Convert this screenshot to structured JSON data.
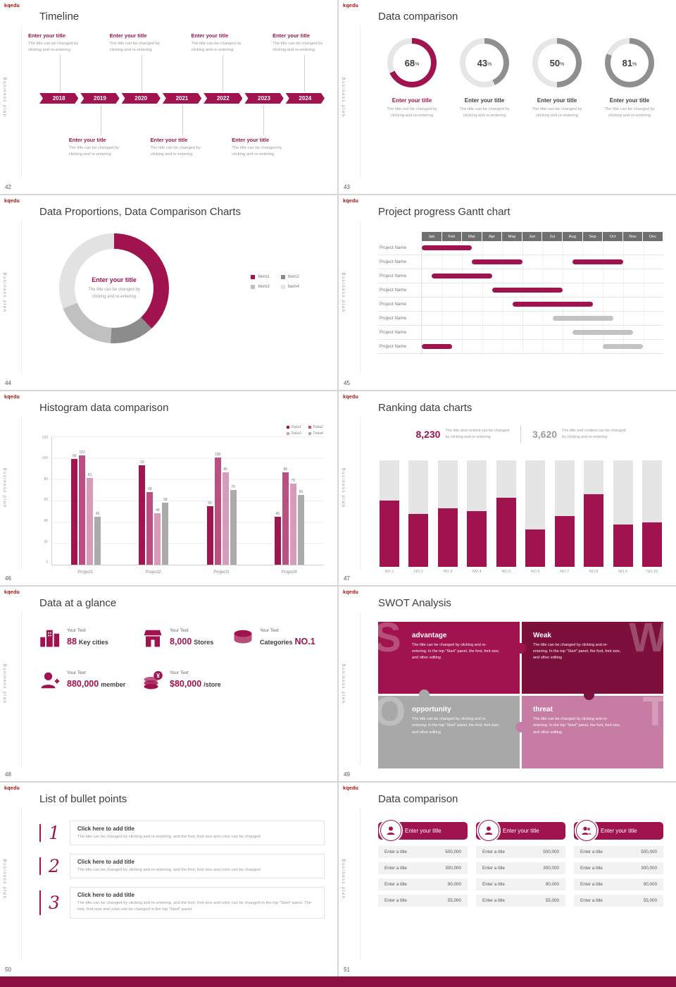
{
  "global": {
    "logo": "kqedu",
    "side_label": "Business plan",
    "accent_color": "#a0134e",
    "footer_color": "#8c1143"
  },
  "slide42": {
    "page": "42",
    "title": "Timeline",
    "years": [
      "2018",
      "2019",
      "2020",
      "2021",
      "2022",
      "2023",
      "2024"
    ],
    "entry": {
      "title": "Enter your title",
      "line1": "The title can be changed by",
      "line2": "clicking and re-entering"
    }
  },
  "slide43": {
    "page": "43",
    "title": "Data comparison",
    "label": "Enter your title",
    "desc_line1": "The title can be changed by",
    "desc_line2": "clicking and re-entering",
    "chart": {
      "type": "donut-progress",
      "unit": "%",
      "values": [
        68,
        43,
        50,
        81
      ],
      "ring_colors": [
        "#a0134e",
        "#8f8f8f",
        "#8f8f8f",
        "#8f8f8f"
      ],
      "track_color": "#e6e6e6"
    }
  },
  "slide44": {
    "page": "44",
    "title": "Data Proportions, Data Comparison Charts",
    "center_title": "Enter your title",
    "center_line1": "The title can be changed by",
    "center_line2": "clicking and re-entering",
    "chart": {
      "type": "pie",
      "legend": [
        "Item1",
        "Item2",
        "Item3",
        "Item4"
      ],
      "values": [
        38,
        13,
        18,
        31
      ],
      "colors": [
        "#a0134e",
        "#8c8c8c",
        "#c0c0c0",
        "#e2e2e2"
      ]
    }
  },
  "slide45": {
    "page": "45",
    "title": "Project progress Gantt chart",
    "row_label": "Project Name",
    "months": [
      "Jan",
      "Feb",
      "Mar",
      "Apr",
      "May",
      "Jun",
      "Jul",
      "Aug",
      "Sep",
      "Oct",
      "Nov",
      "Dec"
    ],
    "chart": {
      "type": "gantt",
      "bar_gray": "#c3c3c3",
      "rows": [
        {
          "bars": [
            {
              "start": 0,
              "end": 2.5,
              "color": "accent"
            }
          ]
        },
        {
          "bars": [
            {
              "start": 2.5,
              "end": 5,
              "color": "accent"
            },
            {
              "start": 7.5,
              "end": 10,
              "color": "accent"
            }
          ]
        },
        {
          "bars": [
            {
              "start": 0.5,
              "end": 3.5,
              "color": "accent"
            }
          ]
        },
        {
          "bars": [
            {
              "start": 3.5,
              "end": 7,
              "color": "accent"
            }
          ]
        },
        {
          "bars": [
            {
              "start": 4.5,
              "end": 8.5,
              "color": "accent"
            }
          ]
        },
        {
          "bars": [
            {
              "start": 6.5,
              "end": 9.5,
              "color": "gray"
            }
          ]
        },
        {
          "bars": [
            {
              "start": 7.5,
              "end": 10.5,
              "color": "gray"
            }
          ]
        },
        {
          "bars": [
            {
              "start": 0,
              "end": 1.5,
              "color": "accent"
            },
            {
              "start": 9,
              "end": 11,
              "color": "gray"
            }
          ]
        }
      ]
    }
  },
  "slide46": {
    "page": "46",
    "title": "Histogram data comparison",
    "chart": {
      "type": "bar",
      "categories": [
        "Project1",
        "Project2",
        "Project3",
        "Project4"
      ],
      "series": [
        {
          "name": "Data1",
          "values": [
            99,
            93,
            55,
            45
          ]
        },
        {
          "name": "Data2",
          "values": [
            102,
            68,
            100,
            86
          ]
        },
        {
          "name": "Data3",
          "values": [
            81,
            48,
            86,
            76
          ]
        },
        {
          "name": "Data4",
          "values": [
            45,
            58,
            70,
            65
          ]
        }
      ],
      "colors": [
        "#9e1550",
        "#bb4f82",
        "#d79ab9",
        "#ababab"
      ],
      "ylim": [
        0,
        120
      ],
      "yticks": [
        0,
        20,
        40,
        60,
        80,
        100,
        120
      ]
    }
  },
  "slide47": {
    "page": "47",
    "title": "Ranking data charts",
    "stats": [
      {
        "value": "8,230",
        "line1": "The title and content can be changed",
        "line2": "by clicking and re-entering"
      },
      {
        "value": "3,620",
        "line1": "The title and content can be changed",
        "line2": "by clicking and re-entering"
      }
    ],
    "chart": {
      "type": "bar",
      "categories": [
        "NO.1",
        "NO.2",
        "NO.3",
        "NO.4",
        "NO.5",
        "NO.6",
        "NO.7",
        "NO.8",
        "NO.9",
        "NO.10"
      ],
      "values": [
        62,
        50,
        55,
        52,
        65,
        35,
        48,
        68,
        40,
        42
      ],
      "max": 100
    }
  },
  "slide48": {
    "page": "48",
    "title": "Data at a glance",
    "items": [
      {
        "label": "Your Text",
        "prefix": "",
        "number": "88",
        "suffix": "Key cities",
        "icon": "city-icon"
      },
      {
        "label": "Your Text",
        "prefix": "",
        "number": "8,000",
        "suffix": "Stores",
        "icon": "store-icon"
      },
      {
        "label": "Your Text",
        "prefix": "Categories",
        "number": "NO.1",
        "suffix": "",
        "icon": "categories-icon"
      },
      {
        "label": "Your Text",
        "prefix": "",
        "number": "880,000",
        "suffix": "member",
        "icon": "member-icon"
      },
      {
        "label": "Your Text",
        "prefix": "",
        "number": "$80,000",
        "suffix": "/store",
        "icon": "coins-icon"
      }
    ]
  },
  "slide49": {
    "page": "49",
    "title": "SWOT Analysis",
    "tiles": [
      {
        "letter": "S",
        "heading": "advantage",
        "desc": "The title can be changed by clicking and re-entering. In the top \"Start\" panel, the font, font size, and other editing",
        "color": "#a0134e"
      },
      {
        "letter": "W",
        "heading": "Weak",
        "desc": "The title can be changed by clicking and re-entering. In the top \"Start\" panel, the font, font size, and other editing",
        "color": "#7c0f3c"
      },
      {
        "letter": "O",
        "heading": "opportunity",
        "desc": "The title can be changed by clicking and re-entering. In the top \"Start\" panel, the font, font size, and other editing",
        "color": "#a8a8a8"
      },
      {
        "letter": "T",
        "heading": "threat",
        "desc": "The title can be changed by clicking and re-entering. In the top \"Start\" panel, the font, font size, and other editing",
        "color": "#c77da3"
      }
    ]
  },
  "slide50": {
    "page": "50",
    "title": "List of bullet points",
    "items": [
      {
        "number": "1",
        "heading": "Click here to add title",
        "desc": "The title can be changed by clicking and re-entering, and the font, font size and color can be changed"
      },
      {
        "number": "2",
        "heading": "Click here to add title",
        "desc": "The title can be changed by clicking and re-entering, and the font, font size and color can be changed"
      },
      {
        "number": "3",
        "heading": "Click here to add title",
        "desc": "The title can be changed by clicking and re-entering, and the font, font size and color can be changed in the top \"Start\" panel. The font, font size and color can be changed in the top \"Start\" panel."
      }
    ]
  },
  "slide51": {
    "page": "51",
    "title": "Data comparison",
    "cards": [
      {
        "header": "Enter your title",
        "rows": [
          {
            "label": "Enter a title",
            "value": "500,000"
          },
          {
            "label": "Enter a title",
            "value": "300,000"
          },
          {
            "label": "Enter a title",
            "value": "90,000"
          },
          {
            "label": "Enter a title",
            "value": "55,000"
          }
        ]
      },
      {
        "header": "Enter your title",
        "rows": [
          {
            "label": "Enter a title",
            "value": "500,000"
          },
          {
            "label": "Enter a title",
            "value": "300,000"
          },
          {
            "label": "Enter a title",
            "value": "90,000"
          },
          {
            "label": "Enter a title",
            "value": "55,000"
          }
        ]
      },
      {
        "header": "Enter your title",
        "rows": [
          {
            "label": "Enter a title",
            "value": "500,000"
          },
          {
            "label": "Enter a title",
            "value": "300,000"
          },
          {
            "label": "Enter a title",
            "value": "90,000"
          },
          {
            "label": "Enter a title",
            "value": "55,000"
          }
        ]
      }
    ]
  }
}
